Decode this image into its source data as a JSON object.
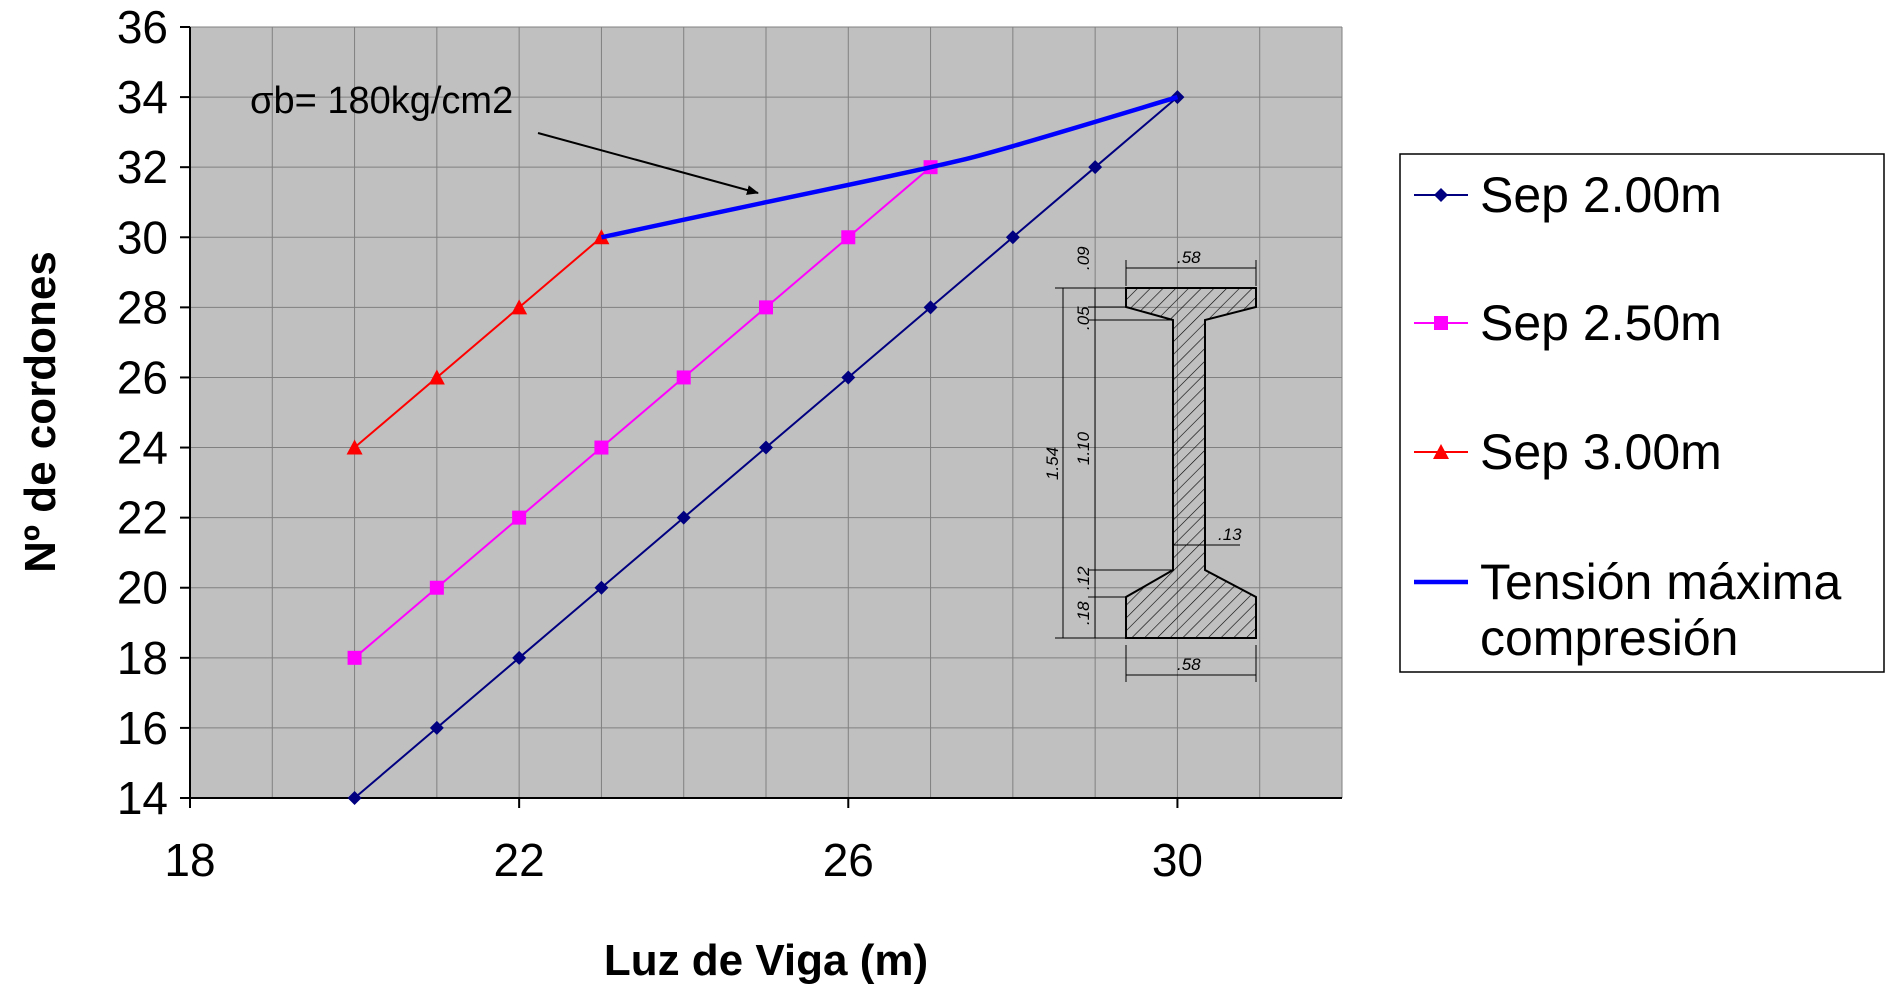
{
  "chart_data": {
    "type": "line",
    "xlabel": "Luz de Viga (m)",
    "ylabel": "Nº de cordones",
    "xlim": [
      18,
      32
    ],
    "ylim": [
      14,
      36
    ],
    "x_ticks": [
      18,
      22,
      26,
      30
    ],
    "y_ticks": [
      14,
      16,
      18,
      20,
      22,
      24,
      26,
      28,
      30,
      32,
      34,
      36
    ],
    "grid": true,
    "plot_background": "#c0c0c0",
    "series": [
      {
        "name": "Sep 2.00m",
        "color": "#000080",
        "marker": "diamond",
        "x": [
          20,
          21,
          22,
          23,
          24,
          25,
          26,
          27,
          28,
          29,
          30
        ],
        "y": [
          14,
          16,
          18,
          20,
          22,
          24,
          26,
          28,
          30,
          32,
          34
        ]
      },
      {
        "name": "Sep 2.50m",
        "color": "#ff00ff",
        "marker": "square",
        "x": [
          20,
          21,
          22,
          23,
          24,
          25,
          26,
          27
        ],
        "y": [
          18,
          20,
          22,
          24,
          26,
          28,
          30,
          32
        ]
      },
      {
        "name": "Sep 3.00m",
        "color": "#ff0000",
        "marker": "triangle",
        "x": [
          20,
          21,
          22,
          23
        ],
        "y": [
          24,
          26,
          28,
          30
        ]
      },
      {
        "name": "Tensión máxima compresión",
        "color": "#0000ff",
        "marker": "none",
        "smooth": true,
        "x": [
          23,
          25,
          27,
          28,
          30
        ],
        "y": [
          30,
          31,
          32,
          32.6,
          34
        ]
      }
    ],
    "legend_position": "right",
    "annotation": {
      "text": "σb= 180kg/cm2",
      "points_to": "Tensión máxima compresión"
    },
    "inset": {
      "description_icon": "i-beam-cross-section",
      "dims": {
        "top_width": ".58",
        "bottom_width": ".58",
        "top_flange": ".09",
        "top_taper": ".05",
        "web_height": "1.10",
        "total_height": "1.54",
        "bottom_taper": ".12",
        "bottom_flange": ".18",
        "web_width": ".13"
      }
    }
  }
}
